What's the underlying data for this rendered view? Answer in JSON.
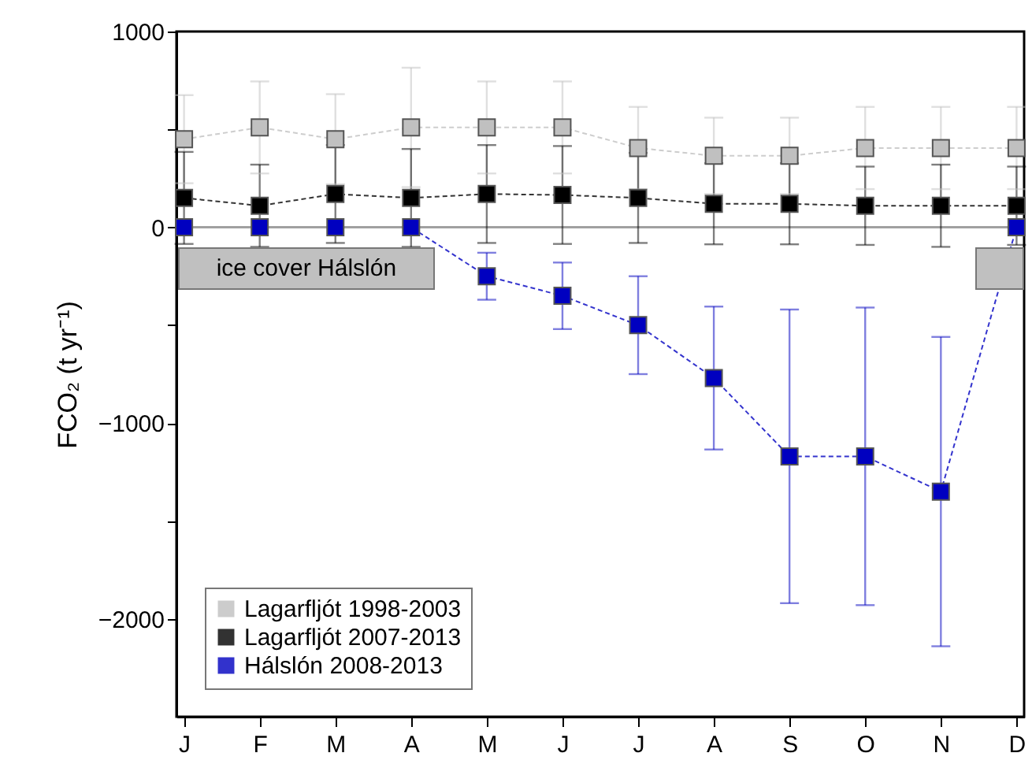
{
  "chart_data": {
    "type": "line",
    "ylabel": "FCO₂ (t yr⁻¹)",
    "categories": [
      "J",
      "F",
      "M",
      "A",
      "M",
      "J",
      "J",
      "A",
      "S",
      "O",
      "N",
      "D"
    ],
    "series": [
      {
        "name": "Lagarfljót 1998-2003",
        "color": "#c0c0c0",
        "values": [
          450,
          510,
          450,
          510,
          510,
          510,
          405,
          365,
          365,
          405,
          405,
          405
        ],
        "errors": [
          225,
          235,
          230,
          305,
          235,
          235,
          210,
          195,
          195,
          210,
          210,
          210
        ]
      },
      {
        "name": "Lagarfljót 2007-2013",
        "color": "#000000",
        "values": [
          150,
          110,
          170,
          150,
          170,
          165,
          150,
          120,
          120,
          110,
          110,
          110
        ],
        "errors": [
          235,
          210,
          250,
          250,
          250,
          250,
          230,
          207,
          207,
          200,
          210,
          200
        ]
      },
      {
        "name": "Hálslón 2008-2013",
        "color": "#0000c0",
        "values": [
          0,
          0,
          0,
          0,
          -250,
          -350,
          -500,
          -770,
          -1170,
          -1170,
          -1350,
          0
        ],
        "errors": [
          null,
          null,
          null,
          null,
          120,
          170,
          250,
          365,
          750,
          760,
          790,
          null
        ]
      }
    ],
    "ylim": [
      -2500,
      1000
    ],
    "yticks": [
      {
        "value": -2000,
        "label": "−2000"
      },
      {
        "value": -1500,
        "label": null
      },
      {
        "value": -1000,
        "label": "−1000"
      },
      {
        "value": -500,
        "label": null
      },
      0,
      {
        "value": 500,
        "label": null
      },
      1000
    ],
    "ref_lines": [
      {
        "axis": "y",
        "value": 0,
        "color": "#a0a0a0"
      }
    ],
    "annotations": [
      "ice cover Hálslón"
    ],
    "marker": "square",
    "line_style": "dashed",
    "legend": "bottom left",
    "grid": false
  }
}
